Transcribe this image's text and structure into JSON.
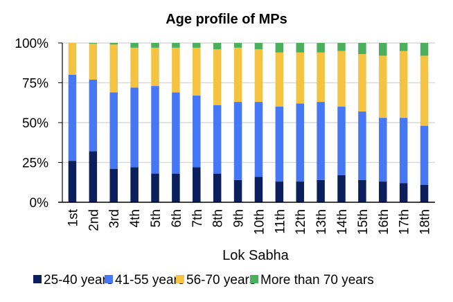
{
  "chart_data": {
    "type": "bar",
    "stacked": true,
    "title": "Age profile of MPs",
    "xlabel": "Lok Sabha",
    "ylabel": "",
    "ylim": [
      0,
      100
    ],
    "yticks": [
      "0%",
      "25%",
      "50%",
      "75%",
      "100%"
    ],
    "ytick_values": [
      0,
      25,
      50,
      75,
      100
    ],
    "grid": true,
    "legend_position": "bottom",
    "categories": [
      "1st",
      "2nd",
      "3rd",
      "4th",
      "5th",
      "6th",
      "7th",
      "8th",
      "9th",
      "10th",
      "11th",
      "12th",
      "13th",
      "14th",
      "15th",
      "16th",
      "17th",
      "18th"
    ],
    "series": [
      {
        "name": "25-40 years",
        "color": "#0b1f5c",
        "values": [
          26,
          32,
          21,
          22,
          18,
          18,
          22,
          18,
          14,
          16,
          13,
          13,
          14,
          17,
          14,
          13,
          12,
          11
        ]
      },
      {
        "name": "41-55 years",
        "color": "#4677f5",
        "values": [
          54,
          45,
          48,
          50,
          55,
          51,
          45,
          43,
          49,
          47,
          47,
          49,
          49,
          43,
          43,
          40,
          41,
          37
        ]
      },
      {
        "name": "56-70 years",
        "color": "#f4c342",
        "values": [
          20,
          22.5,
          30,
          25,
          24,
          28,
          30,
          35,
          34,
          33,
          34,
          32,
          31,
          35,
          36,
          39,
          42,
          44
        ]
      },
      {
        "name": "More than 70 years",
        "color": "#4caf5e",
        "values": [
          0,
          0.5,
          1,
          3,
          3,
          3,
          3,
          4,
          3,
          4,
          6,
          6,
          6,
          5,
          7,
          8,
          5,
          8
        ]
      }
    ]
  }
}
